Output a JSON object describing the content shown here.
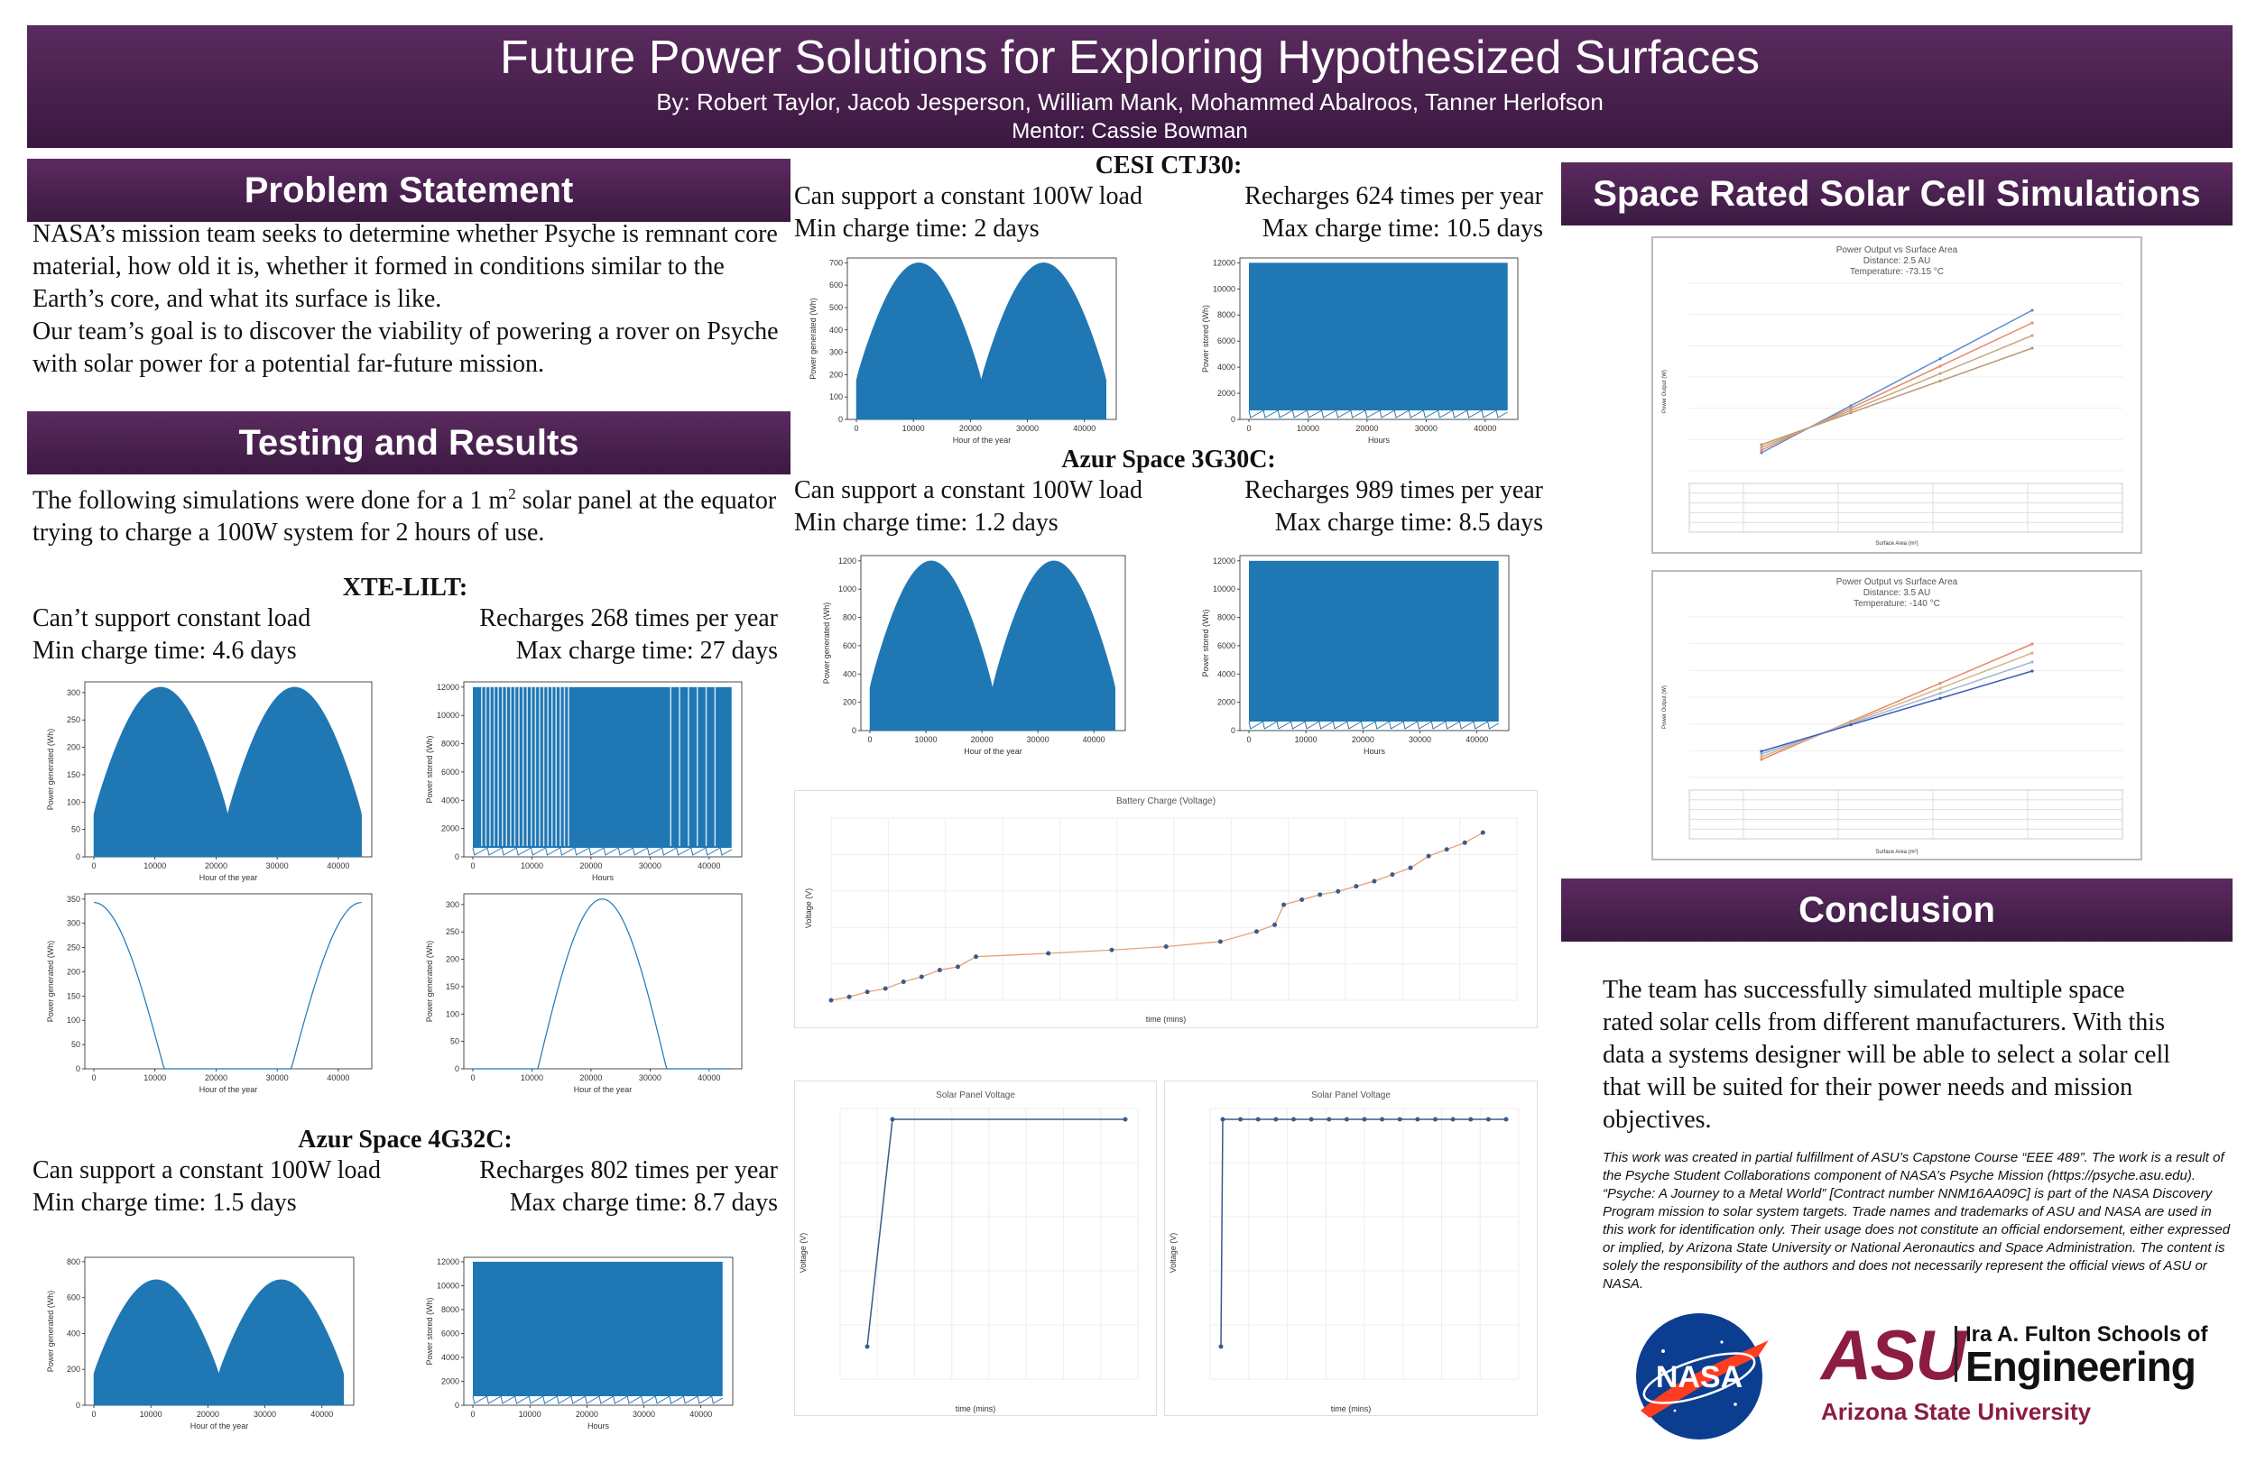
{
  "header": {
    "title": "Future Power Solutions for Exploring Hypothesized Surfaces",
    "authors": "By: Robert Taylor, Jacob Jesperson, William Mank, Mohammed Abalroos, Tanner Herlofson",
    "mentor": "Mentor: Cassie Bowman"
  },
  "problem": {
    "heading": "Problem Statement",
    "p1": "NASA’s mission team seeks to determine whether Psyche is remnant core material, how old it is, whether it formed in conditions similar to the Earth’s core, and what its surface is like.",
    "p2": "Our team’s goal is to discover the viability of powering a rover on Psyche with solar power for a potential far-future mission."
  },
  "testing": {
    "heading": "Testing and Results",
    "intro_a": "The following simulations were done for a 1 m",
    "intro_sup": "2",
    "intro_b": " solar panel at the equator trying to charge a 100W system for 2 hours of use."
  },
  "cells": {
    "xte": {
      "name": "XTE-LILT:",
      "load": "Can’t support constant load",
      "recharges": "Recharges 268 times per year",
      "min": "Min charge time: 4.6 days",
      "max": "Max charge time: 27 days"
    },
    "azur4": {
      "name": "Azur Space 4G32C:",
      "load": "Can support a constant 100W load",
      "recharges": "Recharges 802 times per year",
      "min": "Min charge time: 1.5 days",
      "max": "Max charge time: 8.7 days"
    },
    "cesi": {
      "name": "CESI CTJ30:",
      "load": "Can support a constant 100W load",
      "recharges": "Recharges 624 times per year",
      "min": "Min charge time: 2 days",
      "max": "Max charge time: 10.5 days"
    },
    "azur3": {
      "name": "Azur Space 3G30C:",
      "load": "Can support a constant 100W load",
      "recharges": "Recharges 989 times per year",
      "min": "Min charge time: 1.2 days",
      "max": "Max charge time: 8.5 days"
    }
  },
  "plot_labels": {
    "hour_of_year": "Hour of the year",
    "hours": "Hours",
    "power_generated": "Power generated (Wh)",
    "power_stored": "Power stored (Wh)",
    "x_ticks": [
      "0",
      "10000",
      "20000",
      "30000",
      "40000"
    ]
  },
  "space_rated": {
    "heading": "Space Rated Solar Cell Simulations",
    "chart1": {
      "title": "Power Output vs Surface Area",
      "sub1": "Distance: 2.5 AU",
      "sub2": "Temperature: -73.15 °C",
      "xlabel": "Surface Area (m²)",
      "ylabel": "Power Output (W)"
    },
    "chart2": {
      "title": "Power Output vs Surface Area",
      "sub1": "Distance: 3.5 AU",
      "sub2": "Temperature: -140 °C",
      "xlabel": "Surface Area (m²)",
      "ylabel": "Power Output (W)"
    }
  },
  "battery": {
    "title": "Battery Charge (Voltage)",
    "xlabel": "time (mins)",
    "ylabel": "Voltage (V)"
  },
  "panel_voltage": {
    "title": "Solar Panel Voltage",
    "xlabel": "time (mins)",
    "ylabel": "Voltage (V)"
  },
  "conclusion": {
    "heading": "Conclusion",
    "text": "The team has successfully simulated multiple space rated solar cells from different manufacturers. With this data a systems designer will be able to select a solar cell that will be suited for their power needs and mission objectives.",
    "disclaimer": "This work was created in partial fulfillment of ASU’s Capstone Course “EEE 489”. The work is a result of the Psyche Student Collaborations component of NASA’s Psyche Mission (https://psyche.asu.edu). “Psyche: A Journey to a Metal World” [Contract number NNM16AA09C] is part of the NASA Discovery Program mission to solar system targets. Trade names and trademarks of ASU and NASA are used in this work for identification only. Their usage does not constitute an official endorsement, either expressed or implied, by Arizona State University or National Aeronautics and Space Administration. The content is solely the responsibility of the authors and does not necessarily represent the official views of ASU or NASA."
  },
  "logos": {
    "nasa": "NASA",
    "asu_mark": "ASU",
    "fulton_line1": "Ira A. Fulton Schools of",
    "fulton_line2": "Engineering",
    "asu_name": "Arizona State University"
  },
  "colors": {
    "purple": "#4a2050",
    "plot_blue": "#1f77b4",
    "asu_maroon": "#8c1d40",
    "nasa_blue": "#0b3d91"
  },
  "chart_data": [
    {
      "type": "line",
      "id": "xte-gen",
      "ylim": [
        0,
        310
      ],
      "ylabel": "Power generated (Wh)",
      "xlabel": "Hour of the year",
      "yticks": [
        0,
        50,
        100,
        150,
        200,
        250,
        300
      ]
    },
    {
      "type": "line",
      "id": "xte-stored",
      "ylim": [
        0,
        12000
      ],
      "ylabel": "Power stored (Wh)",
      "xlabel": "Hours",
      "yticks": [
        0,
        2000,
        4000,
        6000,
        8000,
        10000,
        12000
      ]
    },
    {
      "type": "line",
      "id": "xte-gen-a",
      "ylim": [
        0,
        350
      ],
      "ylabel": "Power generated (Wh)",
      "xlabel": "Hour of the year",
      "yticks": [
        0,
        50,
        100,
        150,
        200,
        250,
        300,
        350
      ]
    },
    {
      "type": "line",
      "id": "xte-gen-b",
      "ylim": [
        0,
        310
      ],
      "ylabel": "Power generated (Wh)",
      "xlabel": "Hour of the year",
      "yticks": [
        0,
        50,
        100,
        150,
        200,
        250,
        300
      ]
    },
    {
      "type": "line",
      "id": "azur4-gen",
      "ylim": [
        0,
        700
      ],
      "ylabel": "Power generated (Wh)",
      "xlabel": "Hour of the year",
      "yticks": [
        0,
        200,
        400,
        600,
        800
      ]
    },
    {
      "type": "line",
      "id": "azur4-stored",
      "ylim": [
        0,
        12000
      ],
      "ylabel": "Power stored (Wh)",
      "xlabel": "Hours",
      "yticks": [
        0,
        2000,
        4000,
        6000,
        8000,
        10000,
        12000
      ]
    },
    {
      "type": "line",
      "id": "cesi-gen",
      "ylim": [
        0,
        700
      ],
      "ylabel": "Power generated (Wh)",
      "xlabel": "Hour of the year",
      "yticks": [
        0,
        100,
        200,
        300,
        400,
        500,
        600,
        700
      ]
    },
    {
      "type": "line",
      "id": "cesi-stored",
      "ylim": [
        0,
        12000
      ],
      "ylabel": "Power stored (Wh)",
      "xlabel": "Hours",
      "yticks": [
        0,
        2000,
        4000,
        6000,
        8000,
        10000,
        12000
      ]
    },
    {
      "type": "line",
      "id": "azur3-gen",
      "ylim": [
        0,
        1200
      ],
      "ylabel": "Power generated (Wh)",
      "xlabel": "Hour of the year",
      "yticks": [
        0,
        200,
        400,
        600,
        800,
        1000,
        1200
      ]
    },
    {
      "type": "line",
      "id": "azur3-stored",
      "ylim": [
        0,
        12000
      ],
      "ylabel": "Power stored (Wh)",
      "xlabel": "Hours",
      "yticks": [
        0,
        2000,
        4000,
        6000,
        8000,
        10000,
        12000
      ]
    }
  ]
}
